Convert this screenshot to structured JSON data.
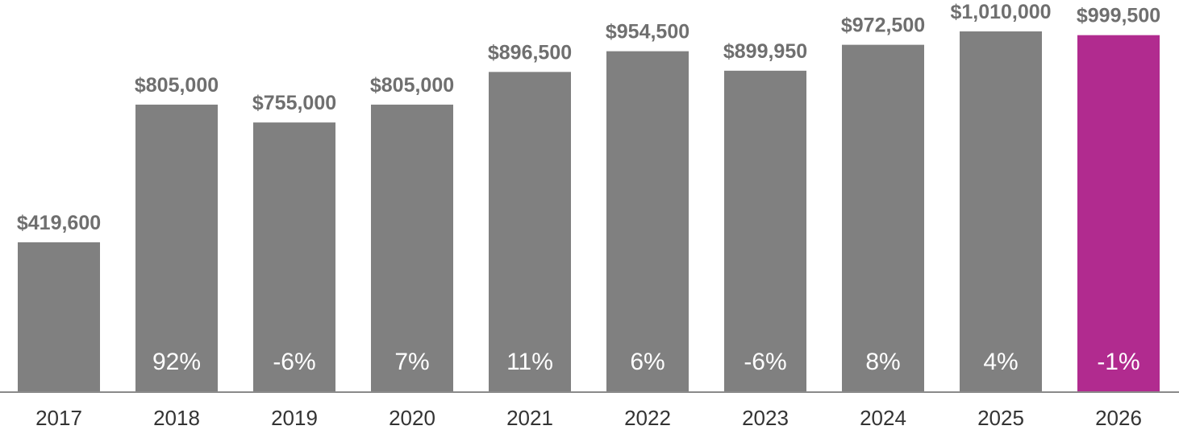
{
  "chart_data": {
    "type": "bar",
    "title": "",
    "xlabel": "",
    "ylabel": "",
    "categories": [
      "2017",
      "2018",
      "2019",
      "2020",
      "2021",
      "2022",
      "2023",
      "2024",
      "2025",
      "2026"
    ],
    "values": [
      419600,
      805000,
      755000,
      805000,
      896500,
      954500,
      899950,
      972500,
      1010000,
      999500
    ],
    "value_labels": [
      "$419,600",
      "$805,000",
      "$755,000",
      "$805,000",
      "$896,500",
      "$954,500",
      "$899,950",
      "$972,500",
      "$1,010,000",
      "$999,500"
    ],
    "change_labels": [
      "",
      "92%",
      "-6%",
      "7%",
      "11%",
      "6%",
      "-6%",
      "8%",
      "4%",
      "-1%"
    ],
    "ylim": [
      0,
      1010000
    ],
    "grid": false,
    "legend": "none",
    "colors": {
      "bar": "#808080",
      "highlight_bar": "#b12b8f",
      "value_label": "#6f6f6f",
      "change_label": "#ffffff",
      "axis": "#8a8a8a",
      "tick_label": "#333333"
    },
    "highlight_index": 9
  }
}
